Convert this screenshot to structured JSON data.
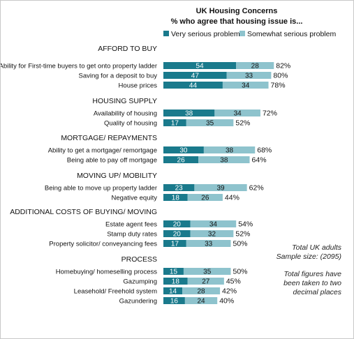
{
  "chart_data": {
    "type": "bar",
    "stacked": true,
    "orientation": "horizontal",
    "title": "UK Housing Concerns",
    "subtitle": "% who agree that housing issue is...",
    "legend": {
      "position": "top",
      "entries": [
        "Very serious problem",
        "Somewhat serious problem"
      ]
    },
    "series_colors": [
      "#1a7a8c",
      "#8ec3cd"
    ],
    "series_names": [
      "Very serious problem",
      "Somewhat serious problem"
    ],
    "groups": [
      {
        "label": "AFFORD TO BUY",
        "items": [
          {
            "label": "Ability for First-time buyers to get onto property ladder",
            "values": [
              54,
              28
            ],
            "total": "82%"
          },
          {
            "label": "Saving for a deposit to buy",
            "values": [
              47,
              33
            ],
            "total": "80%"
          },
          {
            "label": "House prices",
            "values": [
              44,
              34
            ],
            "total": "78%"
          }
        ]
      },
      {
        "label": "HOUSING SUPPLY",
        "items": [
          {
            "label": "Availability of housing",
            "values": [
              38,
              34
            ],
            "total": "72%"
          },
          {
            "label": "Quality of housing",
            "values": [
              17,
              35
            ],
            "total": "52%"
          }
        ]
      },
      {
        "label": "MORTGAGE/ REPAYMENTS",
        "items": [
          {
            "label": "Ability to get a mortgage/ remortgage",
            "values": [
              30,
              38
            ],
            "total": "68%"
          },
          {
            "label": "Being able to pay off mortgage",
            "values": [
              26,
              38
            ],
            "total": "64%"
          }
        ]
      },
      {
        "label": "MOVING UP/ MOBILITY",
        "items": [
          {
            "label": "Being able to move up property ladder",
            "values": [
              23,
              39
            ],
            "total": "62%"
          },
          {
            "label": "Negative equity",
            "values": [
              18,
              26
            ],
            "total": "44%"
          }
        ]
      },
      {
        "label": "ADDITIONAL COSTS OF BUYING/ MOVING",
        "items": [
          {
            "label": "Estate agent fees",
            "values": [
              20,
              34
            ],
            "total": "54%"
          },
          {
            "label": "Stamp duty rates",
            "values": [
              20,
              32
            ],
            "total": "52%"
          },
          {
            "label": "Property solicitor/ conveyancing fees",
            "values": [
              17,
              33
            ],
            "total": "50%"
          }
        ]
      },
      {
        "label": "PROCESS",
        "items": [
          {
            "label": "Homebuying/ homeselling process",
            "values": [
              15,
              35
            ],
            "total": "50%"
          },
          {
            "label": "Gazumping",
            "values": [
              18,
              27
            ],
            "total": "45%"
          },
          {
            "label": "Leasehold/ Freehold system",
            "values": [
              14,
              28
            ],
            "total": "42%"
          },
          {
            "label": "Gazundering",
            "values": [
              16,
              24
            ],
            "total": "40%"
          }
        ]
      }
    ],
    "notes": [
      [
        "Total UK adults",
        "Sample size:  (2095)"
      ],
      [
        "Total figures have",
        "been taken to two",
        "decimal places"
      ]
    ]
  }
}
